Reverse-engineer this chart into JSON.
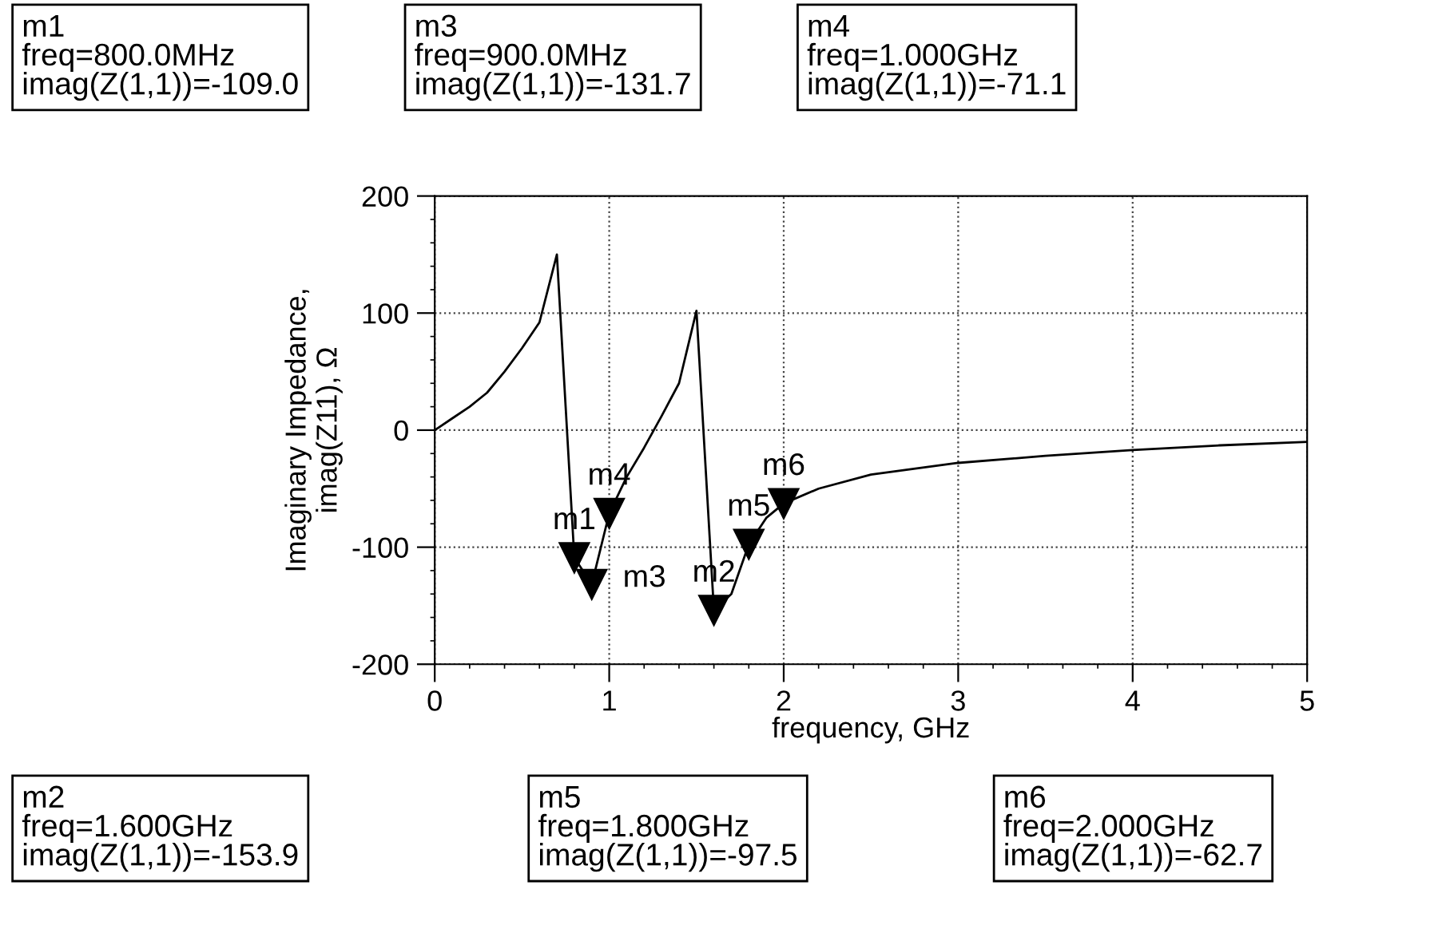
{
  "chart_data": {
    "type": "line",
    "xlabel": "frequency, GHz",
    "ylabel": "Imaginary Impedance,\nimag(Z11), Ω",
    "x": [
      0,
      0.1,
      0.2,
      0.3,
      0.4,
      0.5,
      0.6,
      0.7,
      0.8,
      0.9,
      1.0,
      1.1,
      1.2,
      1.3,
      1.4,
      1.5,
      1.6,
      1.7,
      1.8,
      1.9,
      2.0,
      2.2,
      2.5,
      3.0,
      3.5,
      4.0,
      4.5,
      5.0
    ],
    "series": [
      {
        "color": "#000000",
        "values": [
          0,
          10,
          20,
          32,
          50,
          70,
          92,
          150,
          -109.0,
          -131.7,
          -71.1,
          -40,
          -15,
          12,
          40,
          102,
          -153.9,
          -140,
          -97.5,
          -75,
          -62.7,
          -50,
          -38,
          -28,
          -22,
          -17,
          -13,
          -10
        ]
      }
    ],
    "xlim": [
      0,
      5
    ],
    "xticks": [
      0,
      1,
      2,
      3,
      4,
      5
    ],
    "ylim": [
      -200,
      200
    ],
    "yticks": [
      -200,
      -100,
      0,
      100,
      200
    ],
    "grid": true,
    "marker": "none",
    "line_style": "solid",
    "annotations": [
      {
        "text": "m1",
        "x": 0.8,
        "y": -109.0
      },
      {
        "text": "m3",
        "x": 0.9,
        "y": -131.7
      },
      {
        "text": "m4",
        "x": 1.0,
        "y": -71.1
      },
      {
        "text": "m2",
        "x": 1.6,
        "y": -153.9
      },
      {
        "text": "m5",
        "x": 1.8,
        "y": -97.5
      },
      {
        "text": "m6",
        "x": 2.0,
        "y": -62.7
      },
      "m1\nfreq=800.0MHz\nimag(Z(1,1))=-109.0",
      "m3\nfreq=900.0MHz\nimag(Z(1,1))=-131.7",
      "m4\nfreq=1.000GHz\nimag(Z(1,1))=-71.1",
      "m2\nfreq=1.600GHz\nimag(Z(1,1))=-153.9",
      "m5\nfreq=1.800GHz\nimag(Z(1,1))=-97.5",
      "m6\nfreq=2.000GHz\nimag(Z(1,1))=-62.7"
    ]
  }
}
